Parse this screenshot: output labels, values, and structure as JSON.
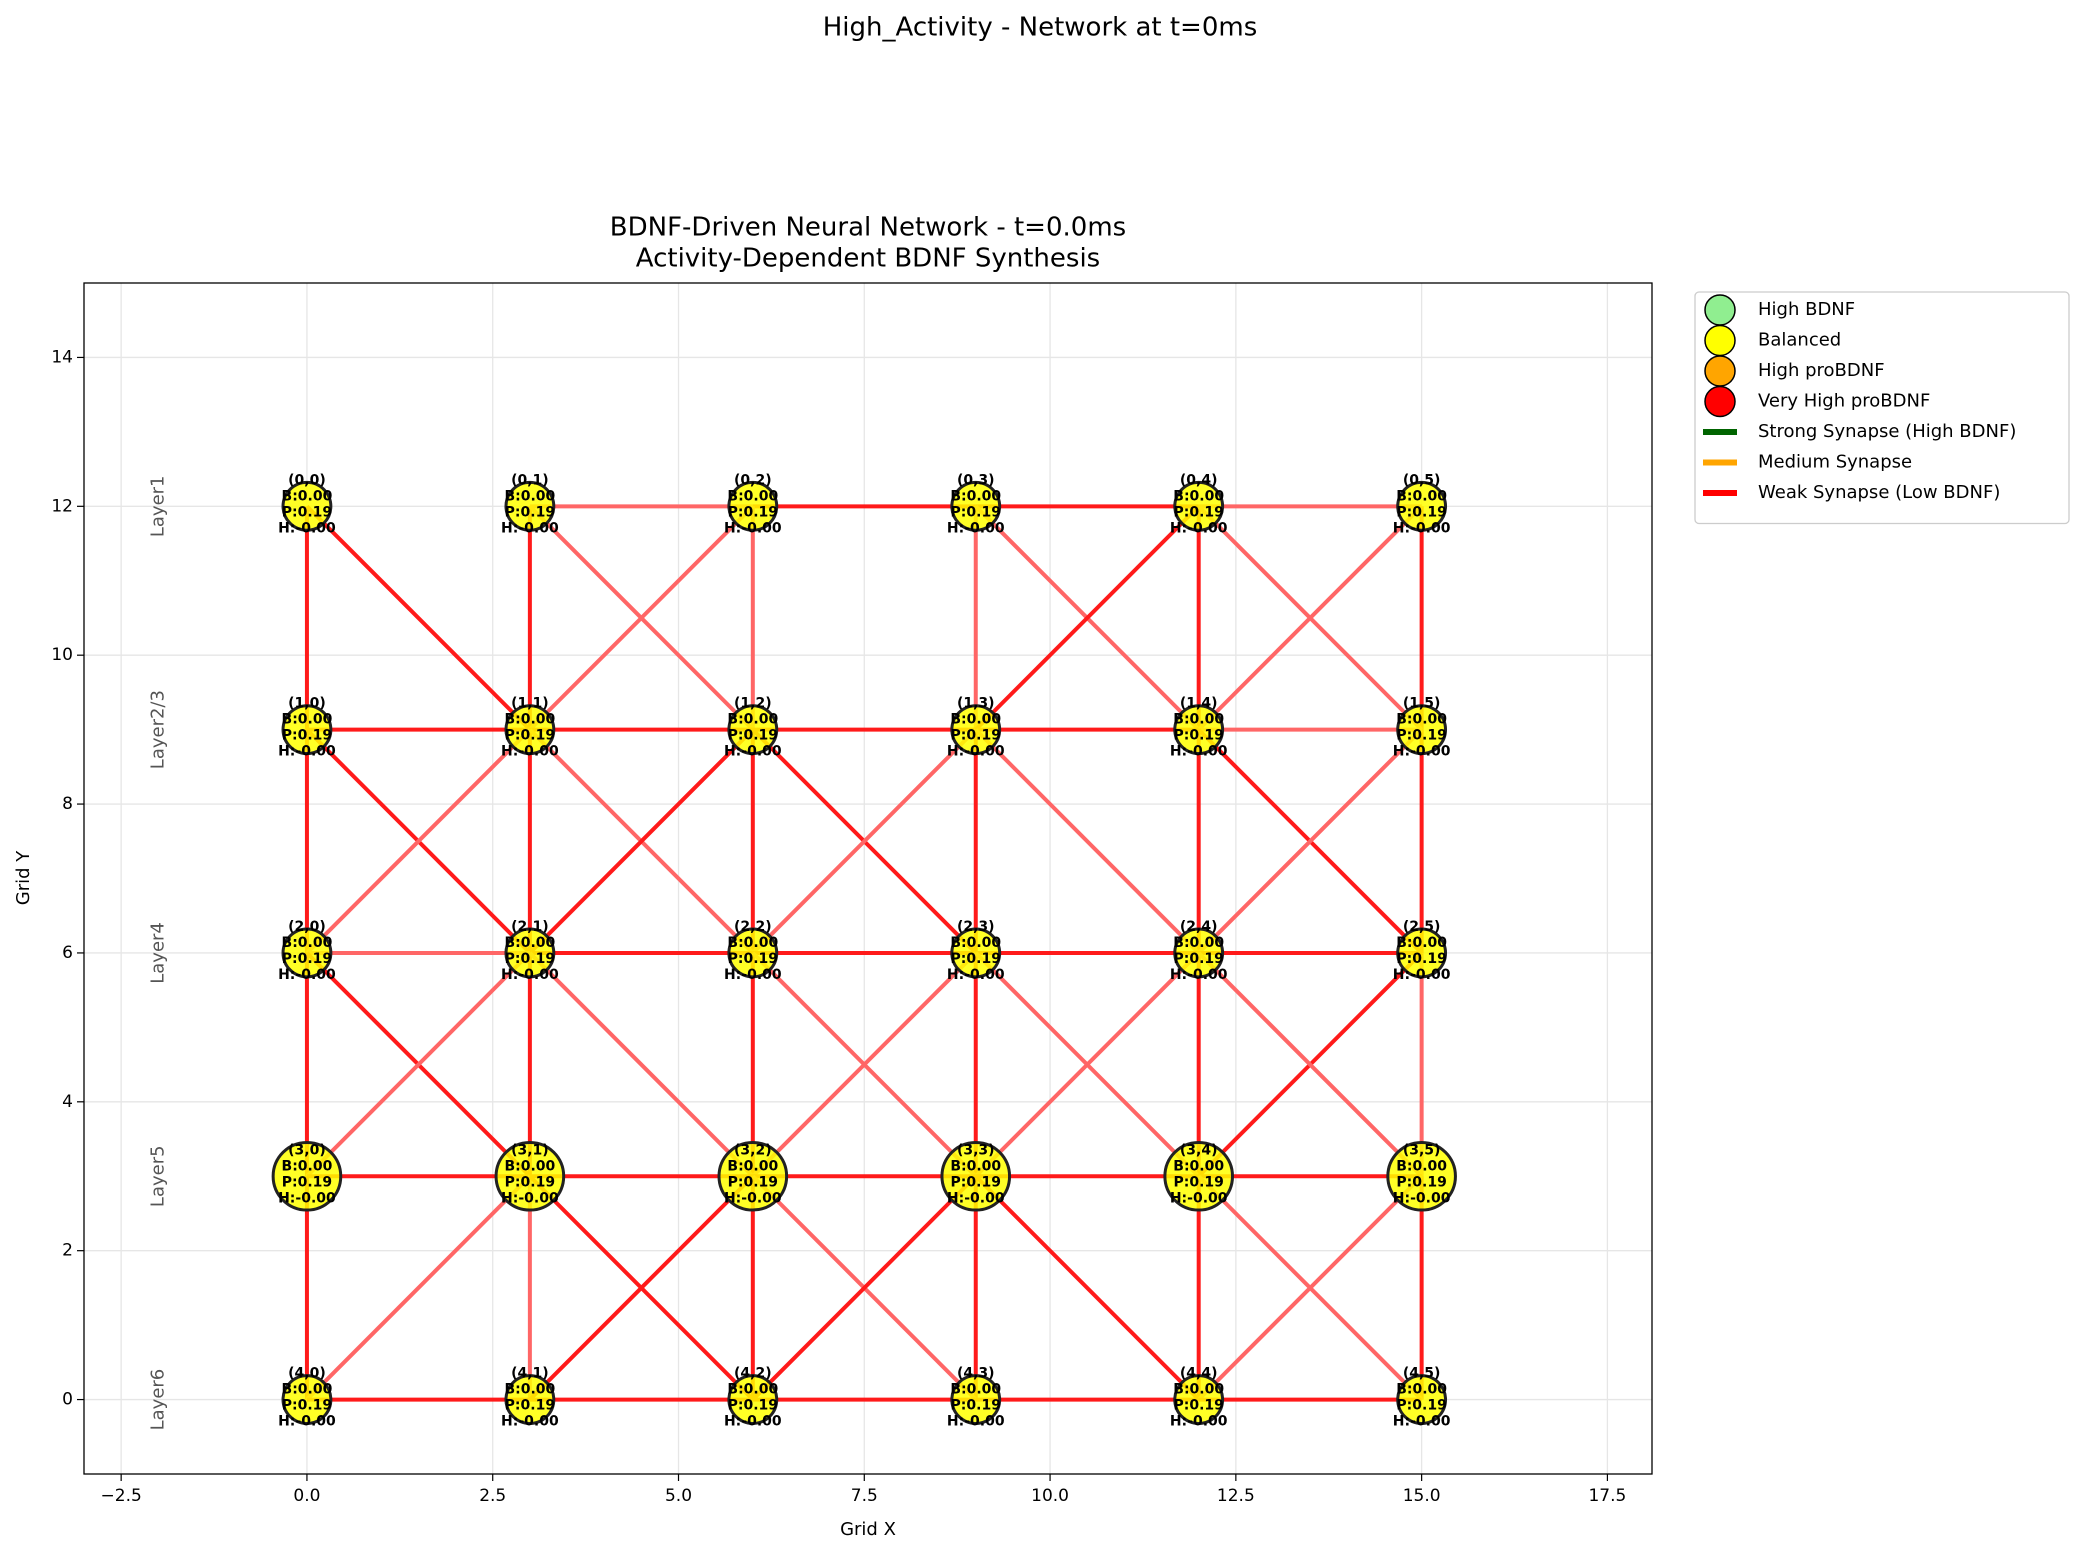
{
  "chart_data": {
    "type": "network",
    "suptitle": "High_Activity - Network at t=0ms",
    "title": [
      "BDNF-Driven Neural Network - t=0.0ms",
      "Activity-Dependent BDNF Synthesis"
    ],
    "xlabel": "Grid X",
    "ylabel": "Grid Y",
    "xlim": [
      -3.0,
      18.1
    ],
    "ylim": [
      -1,
      15
    ],
    "xticks": [
      {
        "value": -2.5,
        "label": "−2.5"
      },
      {
        "value": 0,
        "label": "0.0"
      },
      2.5,
      {
        "value": 5,
        "label": "5.0"
      },
      7.5,
      {
        "value": 10,
        "label": "10.0"
      },
      12.5,
      {
        "value": 15,
        "label": "15.0"
      },
      17.5
    ],
    "yticks": [
      0,
      2,
      4,
      6,
      8,
      10,
      12,
      14
    ],
    "grid": true,
    "layers": [
      {
        "label": "Layer1",
        "x": -2,
        "y": 12
      },
      {
        "label": "Layer2/3",
        "x": -2,
        "y": 9
      },
      {
        "label": "Layer4",
        "x": -2,
        "y": 6
      },
      {
        "label": "Layer5",
        "x": -2,
        "y": 3
      },
      {
        "label": "Layer6",
        "x": -2,
        "y": 0
      }
    ],
    "nodes": [
      {
        "x": 0,
        "y": 12,
        "size": 300,
        "color": "#ffff00",
        "label": [
          "(0,0)",
          "B:0.00",
          "P:0.19",
          "H:-0.00"
        ]
      },
      {
        "x": 3,
        "y": 12,
        "size": 300,
        "color": "#ffff00",
        "label": [
          "(0,1)",
          "B:0.00",
          "P:0.19",
          "H:-0.00"
        ]
      },
      {
        "x": 6,
        "y": 12,
        "size": 300,
        "color": "#ffff00",
        "label": [
          "(0,2)",
          "B:0.00",
          "P:0.19",
          "H:-0.00"
        ]
      },
      {
        "x": 9,
        "y": 12,
        "size": 300,
        "color": "#ffff00",
        "label": [
          "(0,3)",
          "B:0.00",
          "P:0.19",
          "H:-0.00"
        ]
      },
      {
        "x": 12,
        "y": 12,
        "size": 300,
        "color": "#ffff00",
        "label": [
          "(0,4)",
          "B:0.00",
          "P:0.19",
          "H:-0.00"
        ]
      },
      {
        "x": 15,
        "y": 12,
        "size": 300,
        "color": "#ffff00",
        "label": [
          "(0,5)",
          "B:0.00",
          "P:0.19",
          "H:-0.00"
        ]
      },
      {
        "x": 0,
        "y": 9,
        "size": 300,
        "color": "#ffff00",
        "label": [
          "(1,0)",
          "B:0.00",
          "P:0.19",
          "H:-0.00"
        ]
      },
      {
        "x": 3,
        "y": 9,
        "size": 300,
        "color": "#ffff00",
        "label": [
          "(1,1)",
          "B:0.00",
          "P:0.19",
          "H:-0.00"
        ]
      },
      {
        "x": 6,
        "y": 9,
        "size": 300,
        "color": "#ffff00",
        "label": [
          "(1,2)",
          "B:0.00",
          "P:0.19",
          "H:-0.00"
        ]
      },
      {
        "x": 9,
        "y": 9,
        "size": 300,
        "color": "#ffff00",
        "label": [
          "(1,3)",
          "B:0.00",
          "P:0.19",
          "H:-0.00"
        ]
      },
      {
        "x": 12,
        "y": 9,
        "size": 300,
        "color": "#ffff00",
        "label": [
          "(1,4)",
          "B:0.00",
          "P:0.19",
          "H:-0.00"
        ]
      },
      {
        "x": 15,
        "y": 9,
        "size": 300,
        "color": "#ffff00",
        "label": [
          "(1,5)",
          "B:0.00",
          "P:0.19",
          "H:-0.00"
        ]
      },
      {
        "x": 0,
        "y": 6,
        "size": 300,
        "color": "#ffff00",
        "label": [
          "(2,0)",
          "B:0.00",
          "P:0.19",
          "H:-0.00"
        ]
      },
      {
        "x": 3,
        "y": 6,
        "size": 300,
        "color": "#ffff00",
        "label": [
          "(2,1)",
          "B:0.00",
          "P:0.19",
          "H:-0.00"
        ]
      },
      {
        "x": 6,
        "y": 6,
        "size": 300,
        "color": "#ffff00",
        "label": [
          "(2,2)",
          "B:0.00",
          "P:0.19",
          "H:-0.00"
        ]
      },
      {
        "x": 9,
        "y": 6,
        "size": 300,
        "color": "#ffff00",
        "label": [
          "(2,3)",
          "B:0.00",
          "P:0.19",
          "H:-0.00"
        ]
      },
      {
        "x": 12,
        "y": 6,
        "size": 300,
        "color": "#ffff00",
        "label": [
          "(2,4)",
          "B:0.00",
          "P:0.19",
          "H:-0.00"
        ]
      },
      {
        "x": 15,
        "y": 6,
        "size": 300,
        "color": "#ffff00",
        "label": [
          "(2,5)",
          "B:0.00",
          "P:0.19",
          "H:-0.00"
        ]
      },
      {
        "x": 0,
        "y": 3,
        "size": 600,
        "color": "#ffff00",
        "label": [
          "(3,0)",
          "B:0.00",
          "P:0.19",
          "H:-0.00"
        ]
      },
      {
        "x": 3,
        "y": 3,
        "size": 600,
        "color": "#ffff00",
        "label": [
          "(3,1)",
          "B:0.00",
          "P:0.19",
          "H:-0.00"
        ]
      },
      {
        "x": 6,
        "y": 3,
        "size": 600,
        "color": "#ffff00",
        "label": [
          "(3,2)",
          "B:0.00",
          "P:0.19",
          "H:-0.00"
        ]
      },
      {
        "x": 9,
        "y": 3,
        "size": 600,
        "color": "#ffff00",
        "label": [
          "(3,3)",
          "B:0.00",
          "P:0.19",
          "H:-0.00"
        ]
      },
      {
        "x": 12,
        "y": 3,
        "size": 600,
        "color": "#ffff00",
        "label": [
          "(3,4)",
          "B:0.00",
          "P:0.19",
          "H:-0.00"
        ]
      },
      {
        "x": 15,
        "y": 3,
        "size": 600,
        "color": "#ffff00",
        "label": [
          "(3,5)",
          "B:0.00",
          "P:0.19",
          "H:-0.00"
        ]
      },
      {
        "x": 0,
        "y": 0,
        "size": 300,
        "color": "#ffff00",
        "label": [
          "(4,0)",
          "B:0.00",
          "P:0.19",
          "H:-0.00"
        ]
      },
      {
        "x": 3,
        "y": 0,
        "size": 300,
        "color": "#ffff00",
        "label": [
          "(4,1)",
          "B:0.00",
          "P:0.19",
          "H:-0.00"
        ]
      },
      {
        "x": 6,
        "y": 0,
        "size": 300,
        "color": "#ffff00",
        "label": [
          "(4,2)",
          "B:0.00",
          "P:0.19",
          "H:-0.00"
        ]
      },
      {
        "x": 9,
        "y": 0,
        "size": 300,
        "color": "#ffff00",
        "label": [
          "(4,3)",
          "B:0.00",
          "P:0.19",
          "H:-0.00"
        ]
      },
      {
        "x": 12,
        "y": 0,
        "size": 300,
        "color": "#ffff00",
        "label": [
          "(4,4)",
          "B:0.00",
          "P:0.19",
          "H:-0.00"
        ]
      },
      {
        "x": 15,
        "y": 0,
        "size": 300,
        "color": "#ffff00",
        "label": [
          "(4,5)",
          "B:0.00",
          "P:0.19",
          "H:-0.00"
        ]
      }
    ],
    "edges": [
      {
        "source": 1,
        "target": 2,
        "color": "#ff6666"
      },
      {
        "source": 2,
        "target": 3,
        "color": "#ff1a1a"
      },
      {
        "source": 3,
        "target": 4,
        "color": "#ff1a1a"
      },
      {
        "source": 4,
        "target": 5,
        "color": "#ff6666"
      },
      {
        "source": 0,
        "target": 6,
        "color": "#ff1a1a"
      },
      {
        "source": 1,
        "target": 7,
        "color": "#ff1a1a"
      },
      {
        "source": 2,
        "target": 8,
        "color": "#ff6666"
      },
      {
        "source": 3,
        "target": 9,
        "color": "#ff6666"
      },
      {
        "source": 4,
        "target": 10,
        "color": "#ff1a1a"
      },
      {
        "source": 5,
        "target": 11,
        "color": "#ff1a1a"
      },
      {
        "source": 0,
        "target": 7,
        "color": "#ff1a1a"
      },
      {
        "source": 1,
        "target": 8,
        "color": "#ff6666"
      },
      {
        "source": 7,
        "target": 2,
        "color": "#ff6666"
      },
      {
        "source": 3,
        "target": 10,
        "color": "#ff6666"
      },
      {
        "source": 9,
        "target": 4,
        "color": "#ff1a1a"
      },
      {
        "source": 4,
        "target": 11,
        "color": "#ff6666"
      },
      {
        "source": 10,
        "target": 5,
        "color": "#ff6666"
      },
      {
        "source": 6,
        "target": 7,
        "color": "#ff1a1a"
      },
      {
        "source": 7,
        "target": 8,
        "color": "#ff1a1a"
      },
      {
        "source": 8,
        "target": 9,
        "color": "#ff1a1a"
      },
      {
        "source": 9,
        "target": 10,
        "color": "#ff1a1a"
      },
      {
        "source": 10,
        "target": 11,
        "color": "#ff6666"
      },
      {
        "source": 6,
        "target": 12,
        "color": "#ff1a1a"
      },
      {
        "source": 7,
        "target": 13,
        "color": "#ff1a1a"
      },
      {
        "source": 8,
        "target": 14,
        "color": "#ff1a1a"
      },
      {
        "source": 9,
        "target": 15,
        "color": "#ff1a1a"
      },
      {
        "source": 10,
        "target": 16,
        "color": "#ff1a1a"
      },
      {
        "source": 11,
        "target": 17,
        "color": "#ff1a1a"
      },
      {
        "source": 6,
        "target": 13,
        "color": "#ff1a1a"
      },
      {
        "source": 12,
        "target": 7,
        "color": "#ff6666"
      },
      {
        "source": 7,
        "target": 14,
        "color": "#ff6666"
      },
      {
        "source": 13,
        "target": 8,
        "color": "#ff1a1a"
      },
      {
        "source": 8,
        "target": 15,
        "color": "#ff1a1a"
      },
      {
        "source": 14,
        "target": 9,
        "color": "#ff6666"
      },
      {
        "source": 9,
        "target": 16,
        "color": "#ff6666"
      },
      {
        "source": 10,
        "target": 17,
        "color": "#ff1a1a"
      },
      {
        "source": 16,
        "target": 11,
        "color": "#ff6666"
      },
      {
        "source": 12,
        "target": 13,
        "color": "#ff6666"
      },
      {
        "source": 13,
        "target": 14,
        "color": "#ff1a1a"
      },
      {
        "source": 14,
        "target": 15,
        "color": "#ff1a1a"
      },
      {
        "source": 15,
        "target": 16,
        "color": "#ff1a1a"
      },
      {
        "source": 16,
        "target": 17,
        "color": "#ff1a1a"
      },
      {
        "source": 12,
        "target": 18,
        "color": "#ff1a1a"
      },
      {
        "source": 13,
        "target": 19,
        "color": "#ff1a1a"
      },
      {
        "source": 14,
        "target": 20,
        "color": "#ff1a1a"
      },
      {
        "source": 15,
        "target": 21,
        "color": "#ff1a1a"
      },
      {
        "source": 16,
        "target": 22,
        "color": "#ff1a1a"
      },
      {
        "source": 17,
        "target": 23,
        "color": "#ff6666"
      },
      {
        "source": 12,
        "target": 19,
        "color": "#ff1a1a"
      },
      {
        "source": 18,
        "target": 13,
        "color": "#ff6666"
      },
      {
        "source": 13,
        "target": 20,
        "color": "#ff6666"
      },
      {
        "source": 20,
        "target": 15,
        "color": "#ff6666"
      },
      {
        "source": 14,
        "target": 21,
        "color": "#ff6666"
      },
      {
        "source": 21,
        "target": 16,
        "color": "#ff6666"
      },
      {
        "source": 15,
        "target": 22,
        "color": "#ff6666"
      },
      {
        "source": 22,
        "target": 17,
        "color": "#ff1a1a"
      },
      {
        "source": 16,
        "target": 23,
        "color": "#ff6666"
      },
      {
        "source": 18,
        "target": 19,
        "color": "#ff1a1a"
      },
      {
        "source": 19,
        "target": 20,
        "color": "#ff1a1a"
      },
      {
        "source": 20,
        "target": 21,
        "color": "#ff1a1a"
      },
      {
        "source": 21,
        "target": 22,
        "color": "#ff1a1a"
      },
      {
        "source": 22,
        "target": 23,
        "color": "#ff1a1a"
      },
      {
        "source": 18,
        "target": 24,
        "color": "#ff1a1a"
      },
      {
        "source": 19,
        "target": 25,
        "color": "#ff6666"
      },
      {
        "source": 20,
        "target": 26,
        "color": "#ff1a1a"
      },
      {
        "source": 21,
        "target": 27,
        "color": "#ff1a1a"
      },
      {
        "source": 22,
        "target": 28,
        "color": "#ff1a1a"
      },
      {
        "source": 23,
        "target": 29,
        "color": "#ff1a1a"
      },
      {
        "source": 24,
        "target": 19,
        "color": "#ff6666"
      },
      {
        "source": 19,
        "target": 26,
        "color": "#ff1a1a"
      },
      {
        "source": 25,
        "target": 20,
        "color": "#ff1a1a"
      },
      {
        "source": 20,
        "target": 27,
        "color": "#ff6666"
      },
      {
        "source": 26,
        "target": 21,
        "color": "#ff1a1a"
      },
      {
        "source": 21,
        "target": 28,
        "color": "#ff1a1a"
      },
      {
        "source": 22,
        "target": 29,
        "color": "#ff6666"
      },
      {
        "source": 28,
        "target": 23,
        "color": "#ff6666"
      },
      {
        "source": 24,
        "target": 25,
        "color": "#ff1a1a"
      },
      {
        "source": 25,
        "target": 26,
        "color": "#ff1a1a"
      },
      {
        "source": 26,
        "target": 27,
        "color": "#ff1a1a"
      },
      {
        "source": 27,
        "target": 28,
        "color": "#ff1a1a"
      },
      {
        "source": 28,
        "target": 29,
        "color": "#ff1a1a"
      }
    ],
    "legend": {
      "loc": "upper left outside",
      "items": [
        {
          "name": "High BDNF",
          "marker": "circle",
          "color": "#90ee90"
        },
        {
          "name": "Balanced",
          "marker": "circle",
          "color": "#ffff00"
        },
        {
          "name": "High proBDNF",
          "marker": "circle",
          "color": "#ffa500"
        },
        {
          "name": "Very High proBDNF",
          "marker": "circle",
          "color": "#ff0000"
        },
        {
          "name": "Strong Synapse (High BDNF)",
          "marker": "line",
          "color": "#006400"
        },
        {
          "name": "Medium Synapse",
          "marker": "line",
          "color": "#ffa500"
        },
        {
          "name": "Weak Synapse (Low BDNF)",
          "marker": "line",
          "color": "#ff0000"
        }
      ]
    }
  }
}
